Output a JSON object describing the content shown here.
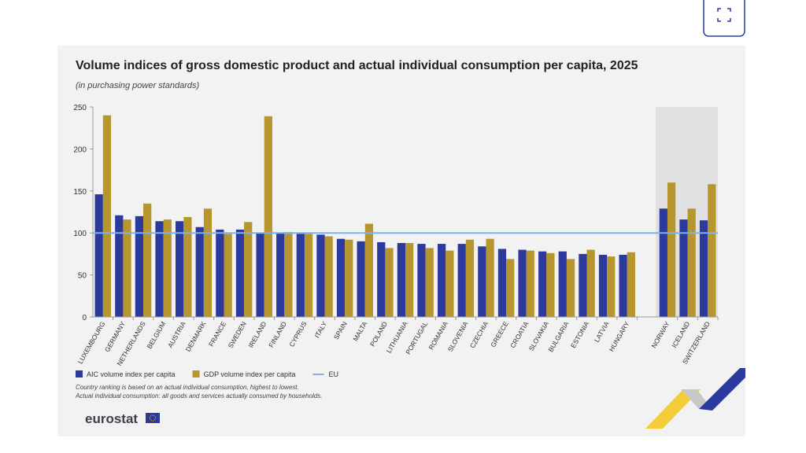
{
  "chart_data": {
    "type": "bar",
    "title": "Volume indices of gross domestic product and actual individual consumption per capita, 2025",
    "subtitle": "(in purchasing power standards)",
    "categories": [
      "LUXEMBOURG",
      "GERMANY",
      "NETHERLANDS",
      "BELGIUM",
      "AUSTRIA",
      "DENMARK",
      "FRANCE",
      "SWEDEN",
      "IRELAND",
      "FINLAND",
      "CYPRUS",
      "ITALY",
      "SPAIN",
      "MALTA",
      "POLAND",
      "LITHUANIA",
      "PORTUGAL",
      "ROMANIA",
      "SLOVENIA",
      "CZECHIA",
      "GREECE",
      "CROATIA",
      "SLOVAKIA",
      "BULGARIA",
      "ESTONIA",
      "LATVIA",
      "HUNGARY",
      null,
      "NORWAY",
      "ICELAND",
      "SWITZERLAND"
    ],
    "series": [
      {
        "name": "AIC volume index per capita",
        "color": "#2b3a9c",
        "values": [
          146,
          121,
          120,
          114,
          114,
          107,
          104,
          104,
          100,
          100,
          99,
          98,
          93,
          90,
          89,
          88,
          87,
          87,
          87,
          84,
          81,
          80,
          78,
          78,
          75,
          74,
          74,
          null,
          129,
          116,
          115
        ]
      },
      {
        "name": "GDP volume index per capita",
        "color": "#b8962e",
        "values": [
          240,
          116,
          135,
          116,
          119,
          129,
          99,
          113,
          239,
          101,
          99,
          96,
          92,
          111,
          82,
          88,
          82,
          79,
          92,
          93,
          69,
          79,
          76,
          69,
          80,
          72,
          77,
          null,
          160,
          129,
          158
        ]
      }
    ],
    "reference_lines": [
      {
        "name": "EU",
        "value": 100,
        "color": "#7eb2ea"
      }
    ],
    "ylim": [
      0,
      250
    ],
    "yticks": [
      0,
      50,
      100,
      150,
      200,
      250
    ],
    "grid": false,
    "notes": [
      "Country ranking is based on an actual individual consumption, highest to lowest.",
      "Actual individual consumption: all goods and services actually consumed by households."
    ],
    "source_logo": "eurostat"
  }
}
